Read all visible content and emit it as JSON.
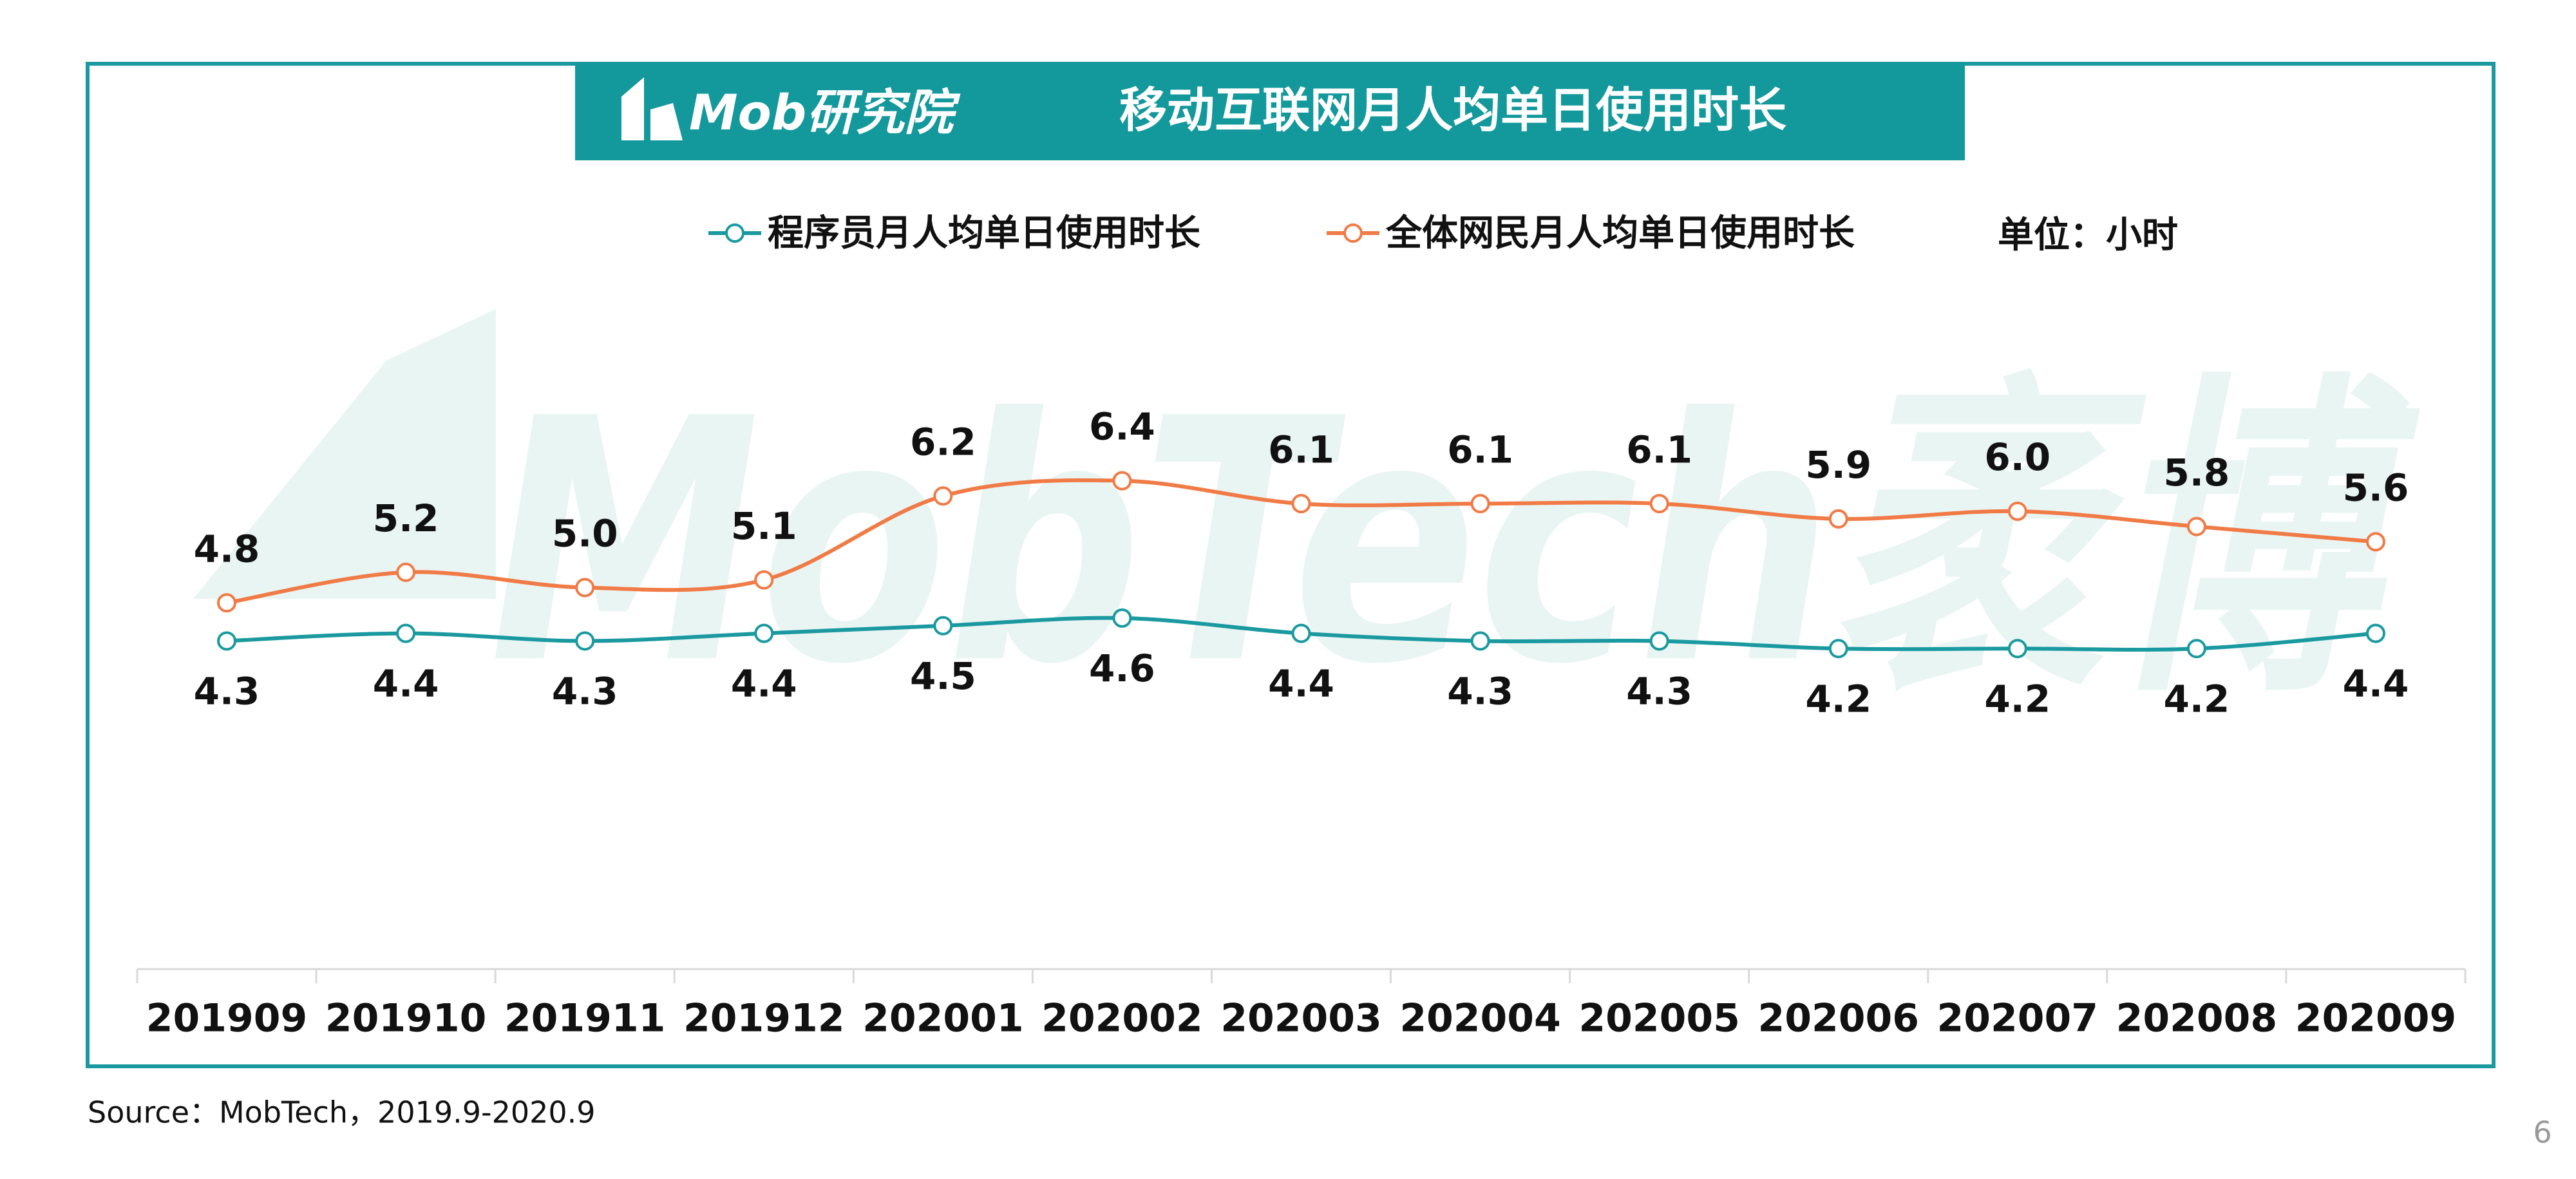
{
  "header": {
    "logo": "Mob研究院",
    "watermark": "MobTech袤博"
  },
  "chart_data": {
    "type": "line",
    "title": "移动互联网月人均单日使用时长",
    "unit": "单位：小时",
    "categories": [
      "201909",
      "201910",
      "201911",
      "201912",
      "202001",
      "202002",
      "202003",
      "202004",
      "202005",
      "202006",
      "202007",
      "202008",
      "202009"
    ],
    "series": [
      {
        "name": "程序员月人均单日使用时长",
        "color": "#1a9aa0",
        "values": [
          4.3,
          4.4,
          4.3,
          4.4,
          4.5,
          4.6,
          4.4,
          4.3,
          4.3,
          4.2,
          4.2,
          4.2,
          4.4
        ]
      },
      {
        "name": "全体网民月人均单日使用时长",
        "color": "#f07b46",
        "values": [
          4.8,
          5.2,
          5.0,
          5.1,
          6.2,
          6.4,
          6.1,
          6.1,
          6.1,
          5.9,
          6.0,
          5.8,
          5.6
        ],
        "value_labels": [
          "4.8",
          "5.2",
          "5.0",
          "5.1",
          "6.2",
          "6.4",
          "6.1",
          "6.1",
          "6.1",
          "5.9",
          "6.0",
          "5.8",
          "5.6"
        ]
      }
    ],
    "ylim": [
      0,
      12
    ],
    "smooth": true
  },
  "footer": {
    "source": "Source：MobTech，2019.9-2020.9",
    "page": "6"
  }
}
